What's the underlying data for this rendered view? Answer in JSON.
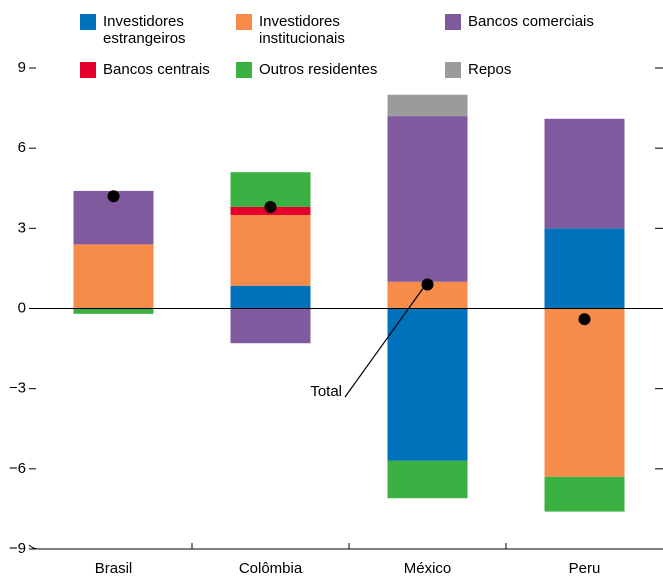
{
  "chart_data": {
    "type": "stacked-bar",
    "categories": [
      "Brasil",
      "Colômbia",
      "México",
      "Peru"
    ],
    "series": [
      {
        "name": "Investidores estrangeiros",
        "color": "#0072bc",
        "values": [
          0,
          0.85,
          -5.7,
          3.0
        ]
      },
      {
        "name": "Investidores institucionais",
        "color": "#f68b4a",
        "values": [
          2.4,
          2.65,
          1.0,
          -6.3
        ]
      },
      {
        "name": "Bancos comerciais",
        "color": "#7f5a9e",
        "values": [
          2.0,
          -1.3,
          6.2,
          4.1
        ]
      },
      {
        "name": "Bancos centrais",
        "color": "#e4002b",
        "values": [
          0,
          0.3,
          0,
          0
        ]
      },
      {
        "name": "Outros residentes",
        "color": "#3bb143",
        "values": [
          -0.2,
          1.3,
          -1.4,
          -1.3
        ]
      },
      {
        "name": "Repos",
        "color": "#9b9b9b",
        "values": [
          0,
          0,
          0.8,
          0
        ]
      }
    ],
    "totals": [
      4.2,
      3.8,
      0.9,
      -0.4
    ],
    "annotation": "Total",
    "ylim": [
      -9,
      9
    ],
    "yticks": [
      {
        "value": -9,
        "label": "−9"
      },
      {
        "value": -6,
        "label": "−6"
      },
      {
        "value": -3,
        "label": "−3"
      },
      0,
      3,
      6,
      9
    ]
  }
}
